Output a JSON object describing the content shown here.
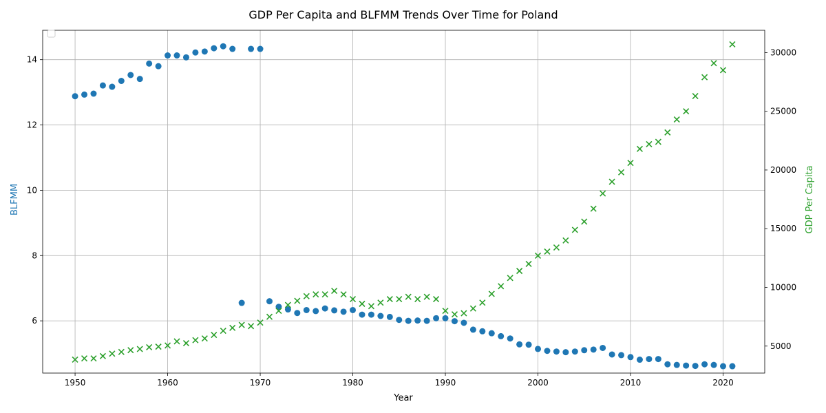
{
  "chart_data": {
    "type": "scatter",
    "title": "GDP Per Capita and BLFMM Trends Over Time for Poland",
    "xlabel": "Year",
    "ylabel_left": "BLFMM",
    "ylabel_right": "GDP Per Capita",
    "color_left": "#1f77b4",
    "color_right": "#2ca02c",
    "xlim": [
      1946.5,
      2024.5
    ],
    "ylim_left": [
      4.4,
      14.9
    ],
    "ylim_right": [
      2700,
      31900
    ],
    "xticks": [
      1950,
      1960,
      1970,
      1980,
      1990,
      2000,
      2010,
      2020
    ],
    "yticks_left": [
      6,
      8,
      10,
      12,
      14
    ],
    "yticks_right": [
      5000,
      10000,
      15000,
      20000,
      25000,
      30000
    ],
    "grid": true,
    "legend": "top-left (empty)",
    "series": [
      {
        "name": "BLFMM",
        "axis": "left",
        "marker": "circle",
        "x": [
          1950,
          1951,
          1952,
          1953,
          1954,
          1955,
          1956,
          1957,
          1958,
          1959,
          1960,
          1961,
          1962,
          1963,
          1964,
          1965,
          1966,
          1967,
          1968,
          1969,
          1970,
          1971,
          1972,
          1973,
          1974,
          1975,
          1976,
          1977,
          1978,
          1979,
          1980,
          1981,
          1982,
          1983,
          1984,
          1985,
          1986,
          1987,
          1988,
          1989,
          1990,
          1991,
          1992,
          1993,
          1994,
          1995,
          1996,
          1997,
          1998,
          1999,
          2000,
          2001,
          2002,
          2003,
          2004,
          2005,
          2006,
          2007,
          2008,
          2009,
          2010,
          2011,
          2012,
          2013,
          2014,
          2015,
          2016,
          2017,
          2018,
          2019,
          2020,
          2021
        ],
        "values": [
          12.88,
          12.93,
          12.96,
          13.21,
          13.17,
          13.35,
          13.53,
          13.41,
          13.88,
          13.8,
          14.13,
          14.13,
          14.07,
          14.22,
          14.25,
          14.35,
          14.41,
          14.33,
          6.55,
          14.33,
          14.33,
          6.6,
          6.43,
          6.35,
          6.24,
          6.33,
          6.3,
          6.38,
          6.32,
          6.28,
          6.33,
          6.19,
          6.19,
          6.15,
          6.12,
          6.03,
          6.0,
          6.01,
          6.0,
          6.08,
          6.08,
          5.99,
          5.94,
          5.73,
          5.68,
          5.62,
          5.53,
          5.46,
          5.28,
          5.27,
          5.14,
          5.08,
          5.06,
          5.04,
          5.06,
          5.1,
          5.12,
          5.17,
          4.97,
          4.95,
          4.89,
          4.81,
          4.83,
          4.83,
          4.67,
          4.65,
          4.63,
          4.62,
          4.67,
          4.65,
          4.61,
          4.61
        ]
      },
      {
        "name": "GDP Per Capita",
        "axis": "right",
        "marker": "x",
        "x": [
          1950,
          1951,
          1952,
          1953,
          1954,
          1955,
          1956,
          1957,
          1958,
          1959,
          1960,
          1961,
          1962,
          1963,
          1964,
          1965,
          1966,
          1967,
          1968,
          1969,
          1970,
          1971,
          1972,
          1973,
          1974,
          1975,
          1976,
          1977,
          1978,
          1979,
          1980,
          1981,
          1982,
          1983,
          1984,
          1985,
          1986,
          1987,
          1988,
          1989,
          1990,
          1991,
          1992,
          1993,
          1994,
          1995,
          1996,
          1997,
          1998,
          1999,
          2000,
          2001,
          2002,
          2003,
          2004,
          2005,
          2006,
          2007,
          2008,
          2009,
          2010,
          2011,
          2012,
          2013,
          2014,
          2015,
          2016,
          2017,
          2018,
          2019,
          2020,
          2021
        ],
        "values": [
          3850,
          3950,
          3950,
          4150,
          4350,
          4500,
          4650,
          4750,
          4900,
          4950,
          5050,
          5400,
          5250,
          5500,
          5650,
          5950,
          6300,
          6550,
          6800,
          6700,
          7000,
          7500,
          8000,
          8500,
          8850,
          9250,
          9400,
          9400,
          9700,
          9400,
          9000,
          8600,
          8400,
          8700,
          9000,
          9000,
          9200,
          9000,
          9200,
          9000,
          8000,
          7700,
          7800,
          8200,
          8700,
          9450,
          10100,
          10800,
          11400,
          12000,
          12700,
          13050,
          13400,
          14000,
          14900,
          15600,
          16700,
          18000,
          19000,
          19800,
          20600,
          21800,
          22200,
          22400,
          23200,
          24300,
          25000,
          26300,
          27900,
          29100,
          28500,
          30700
        ]
      }
    ]
  }
}
